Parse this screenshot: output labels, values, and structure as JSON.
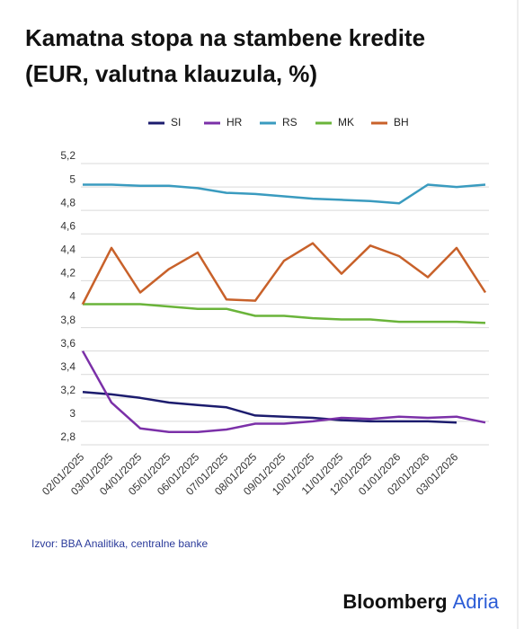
{
  "chart_data": {
    "type": "line",
    "title": [
      "Kamatna stopa na stambene kredite",
      "(EUR, valutna klauzula, %)"
    ],
    "categories": [
      "02/01/2025",
      "03/01/2025",
      "04/01/2025",
      "05/01/2025",
      "06/01/2025",
      "07/01/2025",
      "08/01/2025",
      "09/01/2025",
      "10/01/2025",
      "11/01/2025",
      "12/01/2025",
      "01/01/2026",
      "02/01/2026",
      "03/01/2026",
      null
    ],
    "series": [
      {
        "name": "SI",
        "color": "#1c1c6e",
        "values": [
          3.25,
          3.23,
          3.2,
          3.16,
          3.14,
          3.12,
          3.05,
          3.04,
          3.03,
          3.01,
          3.0,
          3.0,
          3.0,
          2.99,
          null
        ]
      },
      {
        "name": "HR",
        "color": "#7b30a8",
        "values": [
          3.6,
          3.16,
          2.94,
          2.91,
          2.91,
          2.93,
          2.98,
          2.98,
          3.0,
          3.03,
          3.02,
          3.04,
          3.03,
          3.04,
          2.99
        ]
      },
      {
        "name": "RS",
        "color": "#3a9bbf",
        "values": [
          5.02,
          5.02,
          5.01,
          5.01,
          4.99,
          4.95,
          4.94,
          4.92,
          4.9,
          4.89,
          4.88,
          4.86,
          5.02,
          5.0,
          5.02
        ]
      },
      {
        "name": "MK",
        "color": "#6ab43a",
        "values": [
          4.0,
          4.0,
          4.0,
          3.98,
          3.96,
          3.96,
          3.9,
          3.9,
          3.88,
          3.87,
          3.87,
          3.85,
          3.85,
          3.85,
          3.84
        ]
      },
      {
        "name": "BH",
        "color": "#c8612a",
        "values": [
          4.0,
          4.48,
          4.1,
          4.3,
          4.44,
          4.04,
          4.03,
          4.37,
          4.52,
          4.26,
          4.5,
          4.41,
          4.23,
          4.48,
          4.1
        ]
      }
    ],
    "ylim": [
      2.8,
      5.2
    ],
    "yticks": [
      {
        "value": 2.8,
        "label": "2,8"
      },
      3,
      {
        "value": 3.2,
        "label": "3,2"
      },
      {
        "value": 3.4,
        "label": "3,4"
      },
      {
        "value": 3.6,
        "label": "3,6"
      },
      {
        "value": 3.8,
        "label": "3,8"
      },
      4,
      {
        "value": 4.2,
        "label": "4,2"
      },
      {
        "value": 4.4,
        "label": "4,4"
      },
      {
        "value": 4.6,
        "label": "4,6"
      },
      {
        "value": 4.8,
        "label": "4,8"
      },
      5,
      {
        "value": 5.2,
        "label": "5,2"
      }
    ],
    "grid": true,
    "source": "Izvor: BBA Analitika, centralne banke",
    "brand": [
      "Bloomberg",
      "Adria"
    ]
  }
}
